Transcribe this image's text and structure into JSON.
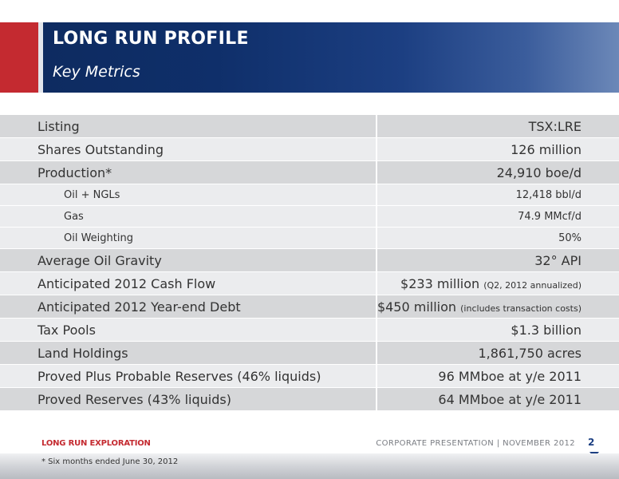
{
  "header": {
    "title": "LONG RUN PROFILE",
    "subtitle": "Key Metrics"
  },
  "metrics": [
    {
      "label": "Listing",
      "value": "TSX:LRE",
      "note": ""
    },
    {
      "label": "Shares Outstanding",
      "value": "126 million",
      "note": ""
    },
    {
      "label": "Production*",
      "value": "24,910 boe/d",
      "note": ""
    },
    {
      "label": "Oil + NGLs",
      "value": "12,418 bbl/d",
      "note": ""
    },
    {
      "label": "Gas",
      "value": "74.9 MMcf/d",
      "note": ""
    },
    {
      "label": "Oil Weighting",
      "value": "50%",
      "note": ""
    },
    {
      "label": "Average Oil Gravity",
      "value": "32° API",
      "note": ""
    },
    {
      "label": "Anticipated 2012 Cash Flow",
      "value": "$233 million",
      "note": "(Q2, 2012 annualized)"
    },
    {
      "label": "Anticipated 2012 Year-end Debt",
      "value": "$450 million",
      "note": "(includes transaction costs)"
    },
    {
      "label": "Tax Pools",
      "value": "$1.3 billion",
      "note": ""
    },
    {
      "label": "Land Holdings",
      "value": "1,861,750 acres",
      "note": ""
    },
    {
      "label": "Proved Plus Probable Reserves (46% liquids)",
      "value": "96 MMboe at y/e 2011",
      "note": ""
    },
    {
      "label": "Proved Reserves (43% liquids)",
      "value": "64 MMboe at y/e 2011",
      "note": ""
    }
  ],
  "footer": {
    "company": "LONG RUN EXPLORATION",
    "presentation": "CORPORATE PRESENTATION | NOVEMBER 2012",
    "page": "2",
    "footnote": "* Six months ended June 30, 2012"
  }
}
